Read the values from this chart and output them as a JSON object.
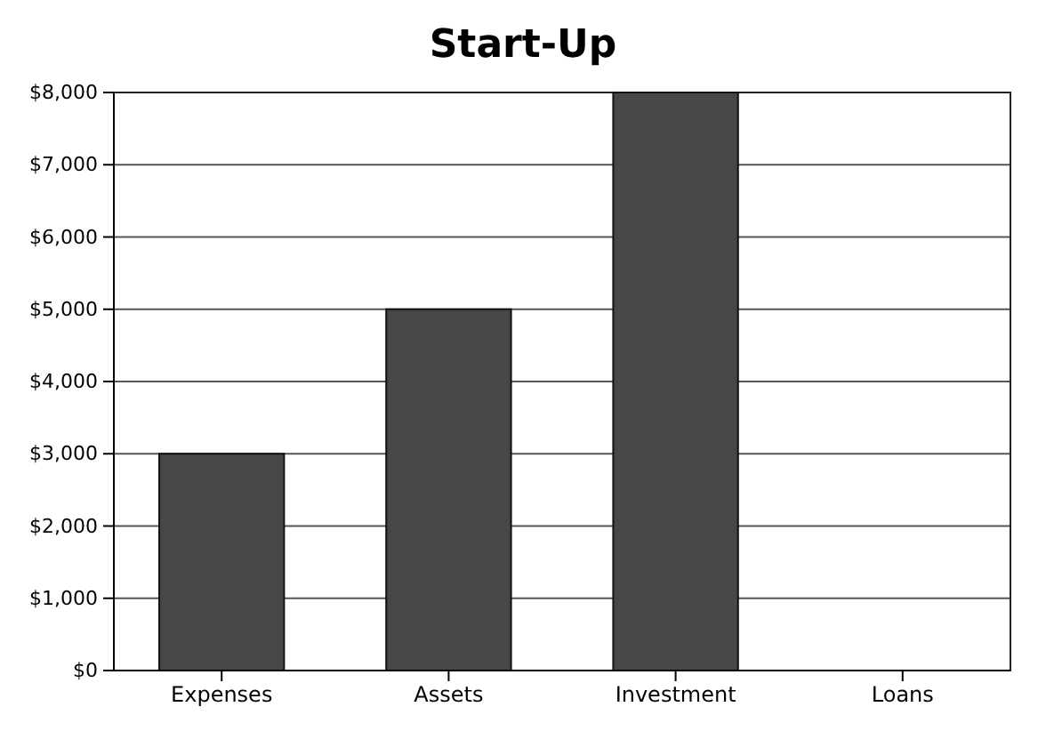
{
  "chart_data": {
    "type": "bar",
    "title": "Start-Up",
    "categories": [
      "Expenses",
      "Assets",
      "Investment",
      "Loans"
    ],
    "values": [
      3000,
      5000,
      8000,
      0
    ],
    "color": "#474747",
    "ylim": [
      0,
      8000
    ],
    "yticks": [
      {
        "value": 0,
        "label": "$0"
      },
      {
        "value": 1000,
        "label": "$1,000"
      },
      {
        "value": 2000,
        "label": "$2,000"
      },
      {
        "value": 3000,
        "label": "$3,000"
      },
      {
        "value": 4000,
        "label": "$4,000"
      },
      {
        "value": 5000,
        "label": "$5,000"
      },
      {
        "value": 6000,
        "label": "$6,000"
      },
      {
        "value": 7000,
        "label": "$7,000"
      },
      {
        "value": 8000,
        "label": "$8,000"
      }
    ],
    "grid": "y"
  }
}
